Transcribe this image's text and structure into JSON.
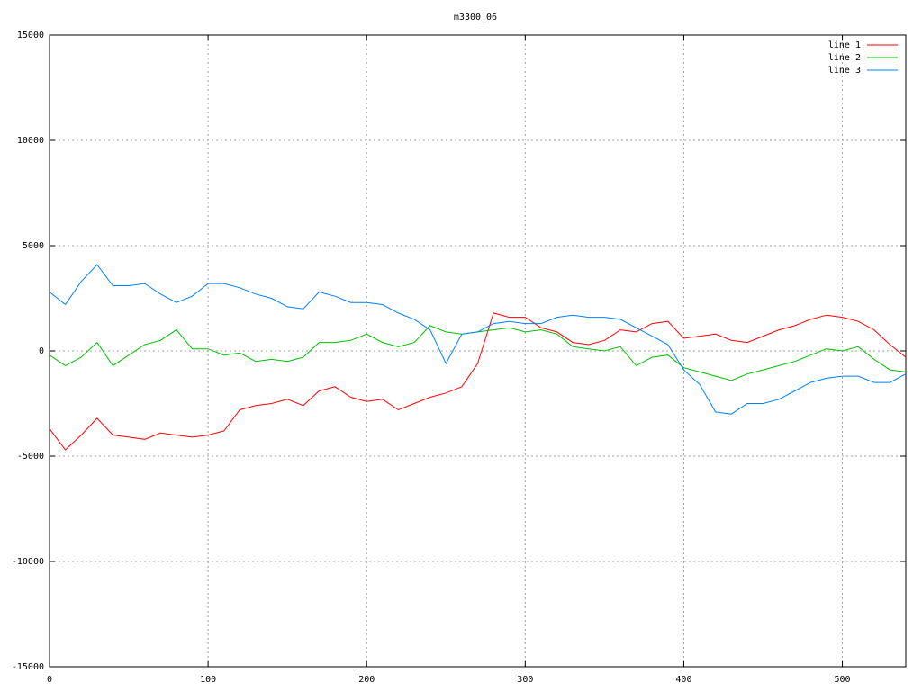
{
  "chart_data": {
    "type": "line",
    "title": "m3300_06",
    "x": [
      0,
      10,
      20,
      30,
      40,
      50,
      60,
      70,
      80,
      90,
      100,
      110,
      120,
      130,
      140,
      150,
      160,
      170,
      180,
      190,
      200,
      210,
      220,
      230,
      240,
      250,
      260,
      270,
      280,
      290,
      300,
      310,
      320,
      330,
      340,
      350,
      360,
      370,
      380,
      390,
      400,
      410,
      420,
      430,
      440,
      450,
      460,
      470,
      480,
      490,
      500,
      510,
      520,
      530,
      540
    ],
    "series": [
      {
        "name": "line 1",
        "color": "#ff0000",
        "values": [
          -3700,
          -4700,
          -4000,
          -3200,
          -4000,
          -4100,
          -4200,
          -3900,
          -4000,
          -4100,
          -4000,
          -3800,
          -2800,
          -2600,
          -2500,
          -2300,
          -2600,
          -1900,
          -1700,
          -2200,
          -2400,
          -2300,
          -2800,
          -2500,
          -2200,
          -2000,
          -1700,
          -600,
          1800,
          1600,
          1600,
          1100,
          900,
          400,
          300,
          500,
          1000,
          900,
          1300,
          1400,
          600,
          700,
          800,
          500,
          400,
          700,
          1000,
          1200,
          1500,
          1700,
          1600,
          1400,
          1000,
          300,
          -300
        ]
      },
      {
        "name": "line 2",
        "color": "#00c000",
        "values": [
          -200,
          -700,
          -300,
          400,
          -700,
          -200,
          300,
          500,
          1000,
          100,
          100,
          -200,
          -100,
          -500,
          -400,
          -500,
          -300,
          400,
          400,
          500,
          800,
          400,
          200,
          400,
          1200,
          900,
          800,
          900,
          1000,
          1100,
          900,
          1000,
          800,
          200,
          100,
          0,
          200,
          -700,
          -300,
          -200,
          -800,
          -1000,
          -1200,
          -1400,
          -1100,
          -900,
          -700,
          -500,
          -200,
          100,
          0,
          200,
          -400,
          -900,
          -1000
        ]
      },
      {
        "name": "line 3",
        "color": "#0080ff",
        "values": [
          2800,
          2200,
          3300,
          4100,
          3100,
          3100,
          3200,
          2700,
          2300,
          2600,
          3200,
          3200,
          3000,
          2700,
          2500,
          2100,
          2000,
          2800,
          2600,
          2300,
          2300,
          2200,
          1800,
          1500,
          1000,
          -600,
          800,
          900,
          1300,
          1400,
          1300,
          1300,
          1600,
          1700,
          1600,
          1600,
          1500,
          1100,
          700,
          300,
          -900,
          -1600,
          -2900,
          -3000,
          -2500,
          -2500,
          -2300,
          -1900,
          -1500,
          -1300,
          -1200,
          -1200,
          -1500,
          -1500,
          -1100
        ]
      }
    ],
    "xlim": [
      0,
      540
    ],
    "ylim": [
      -15000,
      15000
    ],
    "xticks": [
      0,
      100,
      200,
      300,
      400,
      500
    ],
    "yticks": [
      -15000,
      -10000,
      -5000,
      0,
      5000,
      10000,
      15000
    ],
    "grid": true,
    "legend": "top-right"
  }
}
